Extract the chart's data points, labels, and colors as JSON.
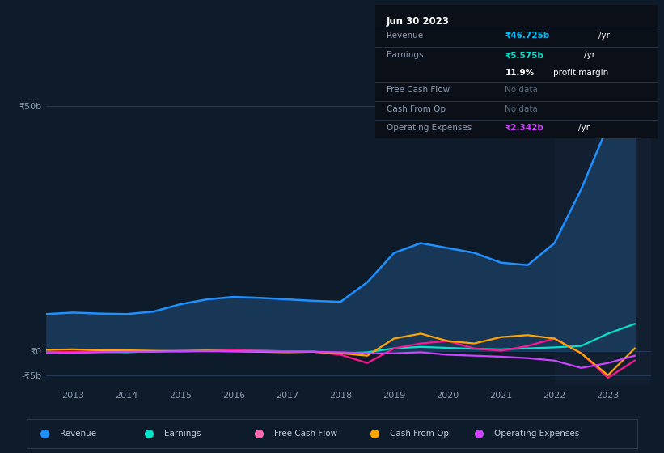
{
  "background_color": "#0d1b2a",
  "chart_bg": "#0d1b2a",
  "ylim": [
    -7000000000,
    55000000000
  ],
  "yticks": [
    -5000000000,
    0,
    50000000000
  ],
  "ytick_labels": [
    "-₹5b",
    "₹0",
    "₹50b"
  ],
  "xlim": [
    2012.5,
    2023.8
  ],
  "xticks": [
    2013,
    2014,
    2015,
    2016,
    2017,
    2018,
    2019,
    2020,
    2021,
    2022,
    2023
  ],
  "legend": [
    {
      "label": "Revenue",
      "color": "#1e90ff"
    },
    {
      "label": "Earnings",
      "color": "#00e5cc"
    },
    {
      "label": "Free Cash Flow",
      "color": "#ff69b4"
    },
    {
      "label": "Cash From Op",
      "color": "#ffa500"
    },
    {
      "label": "Operating Expenses",
      "color": "#cc44ff"
    }
  ],
  "series": {
    "revenue": {
      "color": "#1e90ff",
      "fill_color": "#1a3a5c",
      "x": [
        2012.5,
        2013.0,
        2013.5,
        2014.0,
        2014.5,
        2015.0,
        2015.5,
        2016.0,
        2016.5,
        2017.0,
        2017.5,
        2018.0,
        2018.5,
        2019.0,
        2019.5,
        2020.0,
        2020.5,
        2021.0,
        2021.5,
        2022.0,
        2022.5,
        2023.0,
        2023.5
      ],
      "y": [
        7500000000,
        7800000000,
        7600000000,
        7500000000,
        8000000000,
        9500000000,
        10500000000,
        11000000000,
        10800000000,
        10500000000,
        10200000000,
        10000000000,
        14000000000,
        20000000000,
        22000000000,
        21000000000,
        20000000000,
        18000000000,
        17500000000,
        22000000000,
        33000000000,
        46000000000,
        48000000000
      ]
    },
    "earnings": {
      "color": "#00e5cc",
      "x": [
        2012.5,
        2013.0,
        2013.5,
        2014.0,
        2014.5,
        2015.0,
        2015.5,
        2016.0,
        2016.5,
        2017.0,
        2017.5,
        2018.0,
        2018.5,
        2019.0,
        2019.5,
        2020.0,
        2020.5,
        2021.0,
        2021.5,
        2022.0,
        2022.5,
        2023.0,
        2023.5
      ],
      "y": [
        -200000000,
        -300000000,
        -200000000,
        -300000000,
        -100000000,
        0,
        100000000,
        100000000,
        0,
        -100000000,
        -200000000,
        -500000000,
        -300000000,
        500000000,
        800000000,
        600000000,
        400000000,
        300000000,
        500000000,
        700000000,
        1000000000,
        3500000000,
        5500000000
      ]
    },
    "free_cash_flow": {
      "color": "#ff1493",
      "x": [
        2012.5,
        2013.0,
        2013.5,
        2014.0,
        2014.5,
        2015.0,
        2015.5,
        2016.0,
        2016.5,
        2017.0,
        2017.5,
        2018.0,
        2018.5,
        2019.0,
        2019.5,
        2020.0,
        2020.5,
        2021.0,
        2021.5,
        2022.0,
        2022.5,
        2023.0,
        2023.5
      ],
      "y": [
        -300000000,
        -200000000,
        -100000000,
        -200000000,
        -100000000,
        0,
        0,
        100000000,
        0,
        -100000000,
        -200000000,
        -800000000,
        -2500000000,
        500000000,
        1500000000,
        2000000000,
        500000000,
        0,
        1000000000,
        2500000000,
        -500000000,
        -5500000000,
        -2000000000
      ]
    },
    "cash_from_op": {
      "color": "#ffa500",
      "x": [
        2012.5,
        2013.0,
        2013.5,
        2014.0,
        2014.5,
        2015.0,
        2015.5,
        2016.0,
        2016.5,
        2017.0,
        2017.5,
        2018.0,
        2018.5,
        2019.0,
        2019.5,
        2020.0,
        2020.5,
        2021.0,
        2021.5,
        2022.0,
        2022.5,
        2023.0,
        2023.5
      ],
      "y": [
        200000000,
        300000000,
        100000000,
        100000000,
        0,
        -100000000,
        0,
        -100000000,
        -200000000,
        -300000000,
        -200000000,
        -500000000,
        -1000000000,
        2500000000,
        3500000000,
        2000000000,
        1500000000,
        2800000000,
        3200000000,
        2500000000,
        -500000000,
        -5000000000,
        500000000
      ]
    },
    "operating_expenses": {
      "color": "#cc44ff",
      "x": [
        2012.5,
        2013.0,
        2013.5,
        2014.0,
        2014.5,
        2015.0,
        2015.5,
        2016.0,
        2016.5,
        2017.0,
        2017.5,
        2018.0,
        2018.5,
        2019.0,
        2019.5,
        2020.0,
        2020.5,
        2021.0,
        2021.5,
        2022.0,
        2022.5,
        2023.0,
        2023.5
      ],
      "y": [
        -500000000,
        -400000000,
        -300000000,
        -200000000,
        -200000000,
        -100000000,
        -100000000,
        -100000000,
        -100000000,
        -200000000,
        -200000000,
        -300000000,
        -500000000,
        -500000000,
        -300000000,
        -800000000,
        -1000000000,
        -1200000000,
        -1500000000,
        -2000000000,
        -3500000000,
        -2500000000,
        -1000000000
      ]
    }
  },
  "info_box": {
    "date": "Jun 30 2023",
    "bg_color": "#0a0f18",
    "border_color": "#2a3a4a",
    "title_color": "#ffffff",
    "label_color": "#8a9bb0",
    "nodata_color": "#5a6a7a",
    "revenue_value": "₹46.725b",
    "revenue_color": "#00bfff",
    "earnings_value": "₹5.575b",
    "earnings_color": "#00e5cc",
    "margin_text": "11.9% profit margin",
    "opex_value": "₹2.342b",
    "opex_color": "#cc44ff"
  }
}
